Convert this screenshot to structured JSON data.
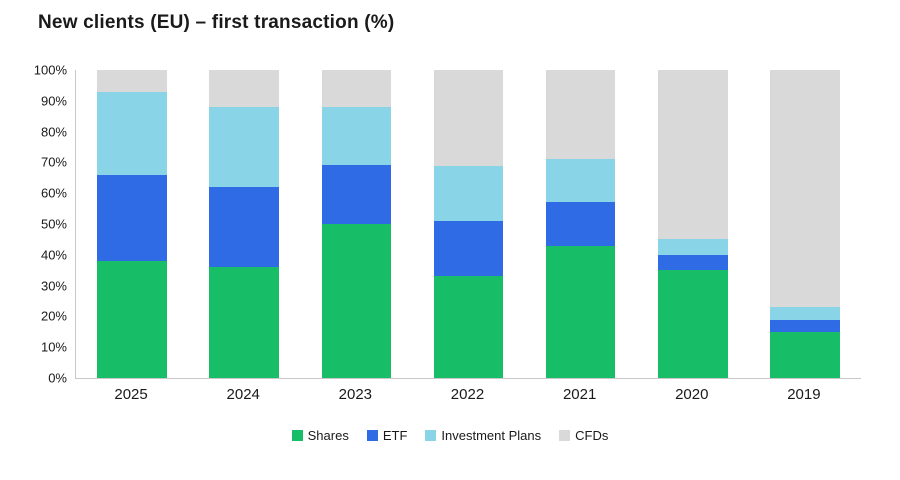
{
  "title": "New clients (EU) – first transaction (%)",
  "chart_data": {
    "type": "bar",
    "stacked": true,
    "stack_total": 100,
    "title": "New clients (EU) – first transaction (%)",
    "xlabel": "",
    "ylabel": "",
    "ylim": [
      0,
      100
    ],
    "grid": false,
    "legend_position": "bottom",
    "categories": [
      "2025",
      "2024",
      "2023",
      "2022",
      "2021",
      "2020",
      "2019"
    ],
    "yticks": [
      "0%",
      "10%",
      "20%",
      "30%",
      "40%",
      "50%",
      "60%",
      "70%",
      "80%",
      "90%",
      "100%"
    ],
    "series": [
      {
        "name": "Shares",
        "color": "#18bd68",
        "values": [
          38,
          36,
          50,
          33,
          43,
          35,
          15
        ]
      },
      {
        "name": "ETF",
        "color": "#2f6be4",
        "values": [
          28,
          26,
          19,
          18,
          14,
          5,
          4
        ]
      },
      {
        "name": "Investment Plans",
        "color": "#8ad4e8",
        "values": [
          27,
          26,
          19,
          18,
          14,
          5,
          4
        ]
      },
      {
        "name": "CFDs",
        "color": "#d9d9d9",
        "values": [
          7,
          12,
          12,
          31,
          29,
          55,
          77
        ]
      }
    ]
  }
}
